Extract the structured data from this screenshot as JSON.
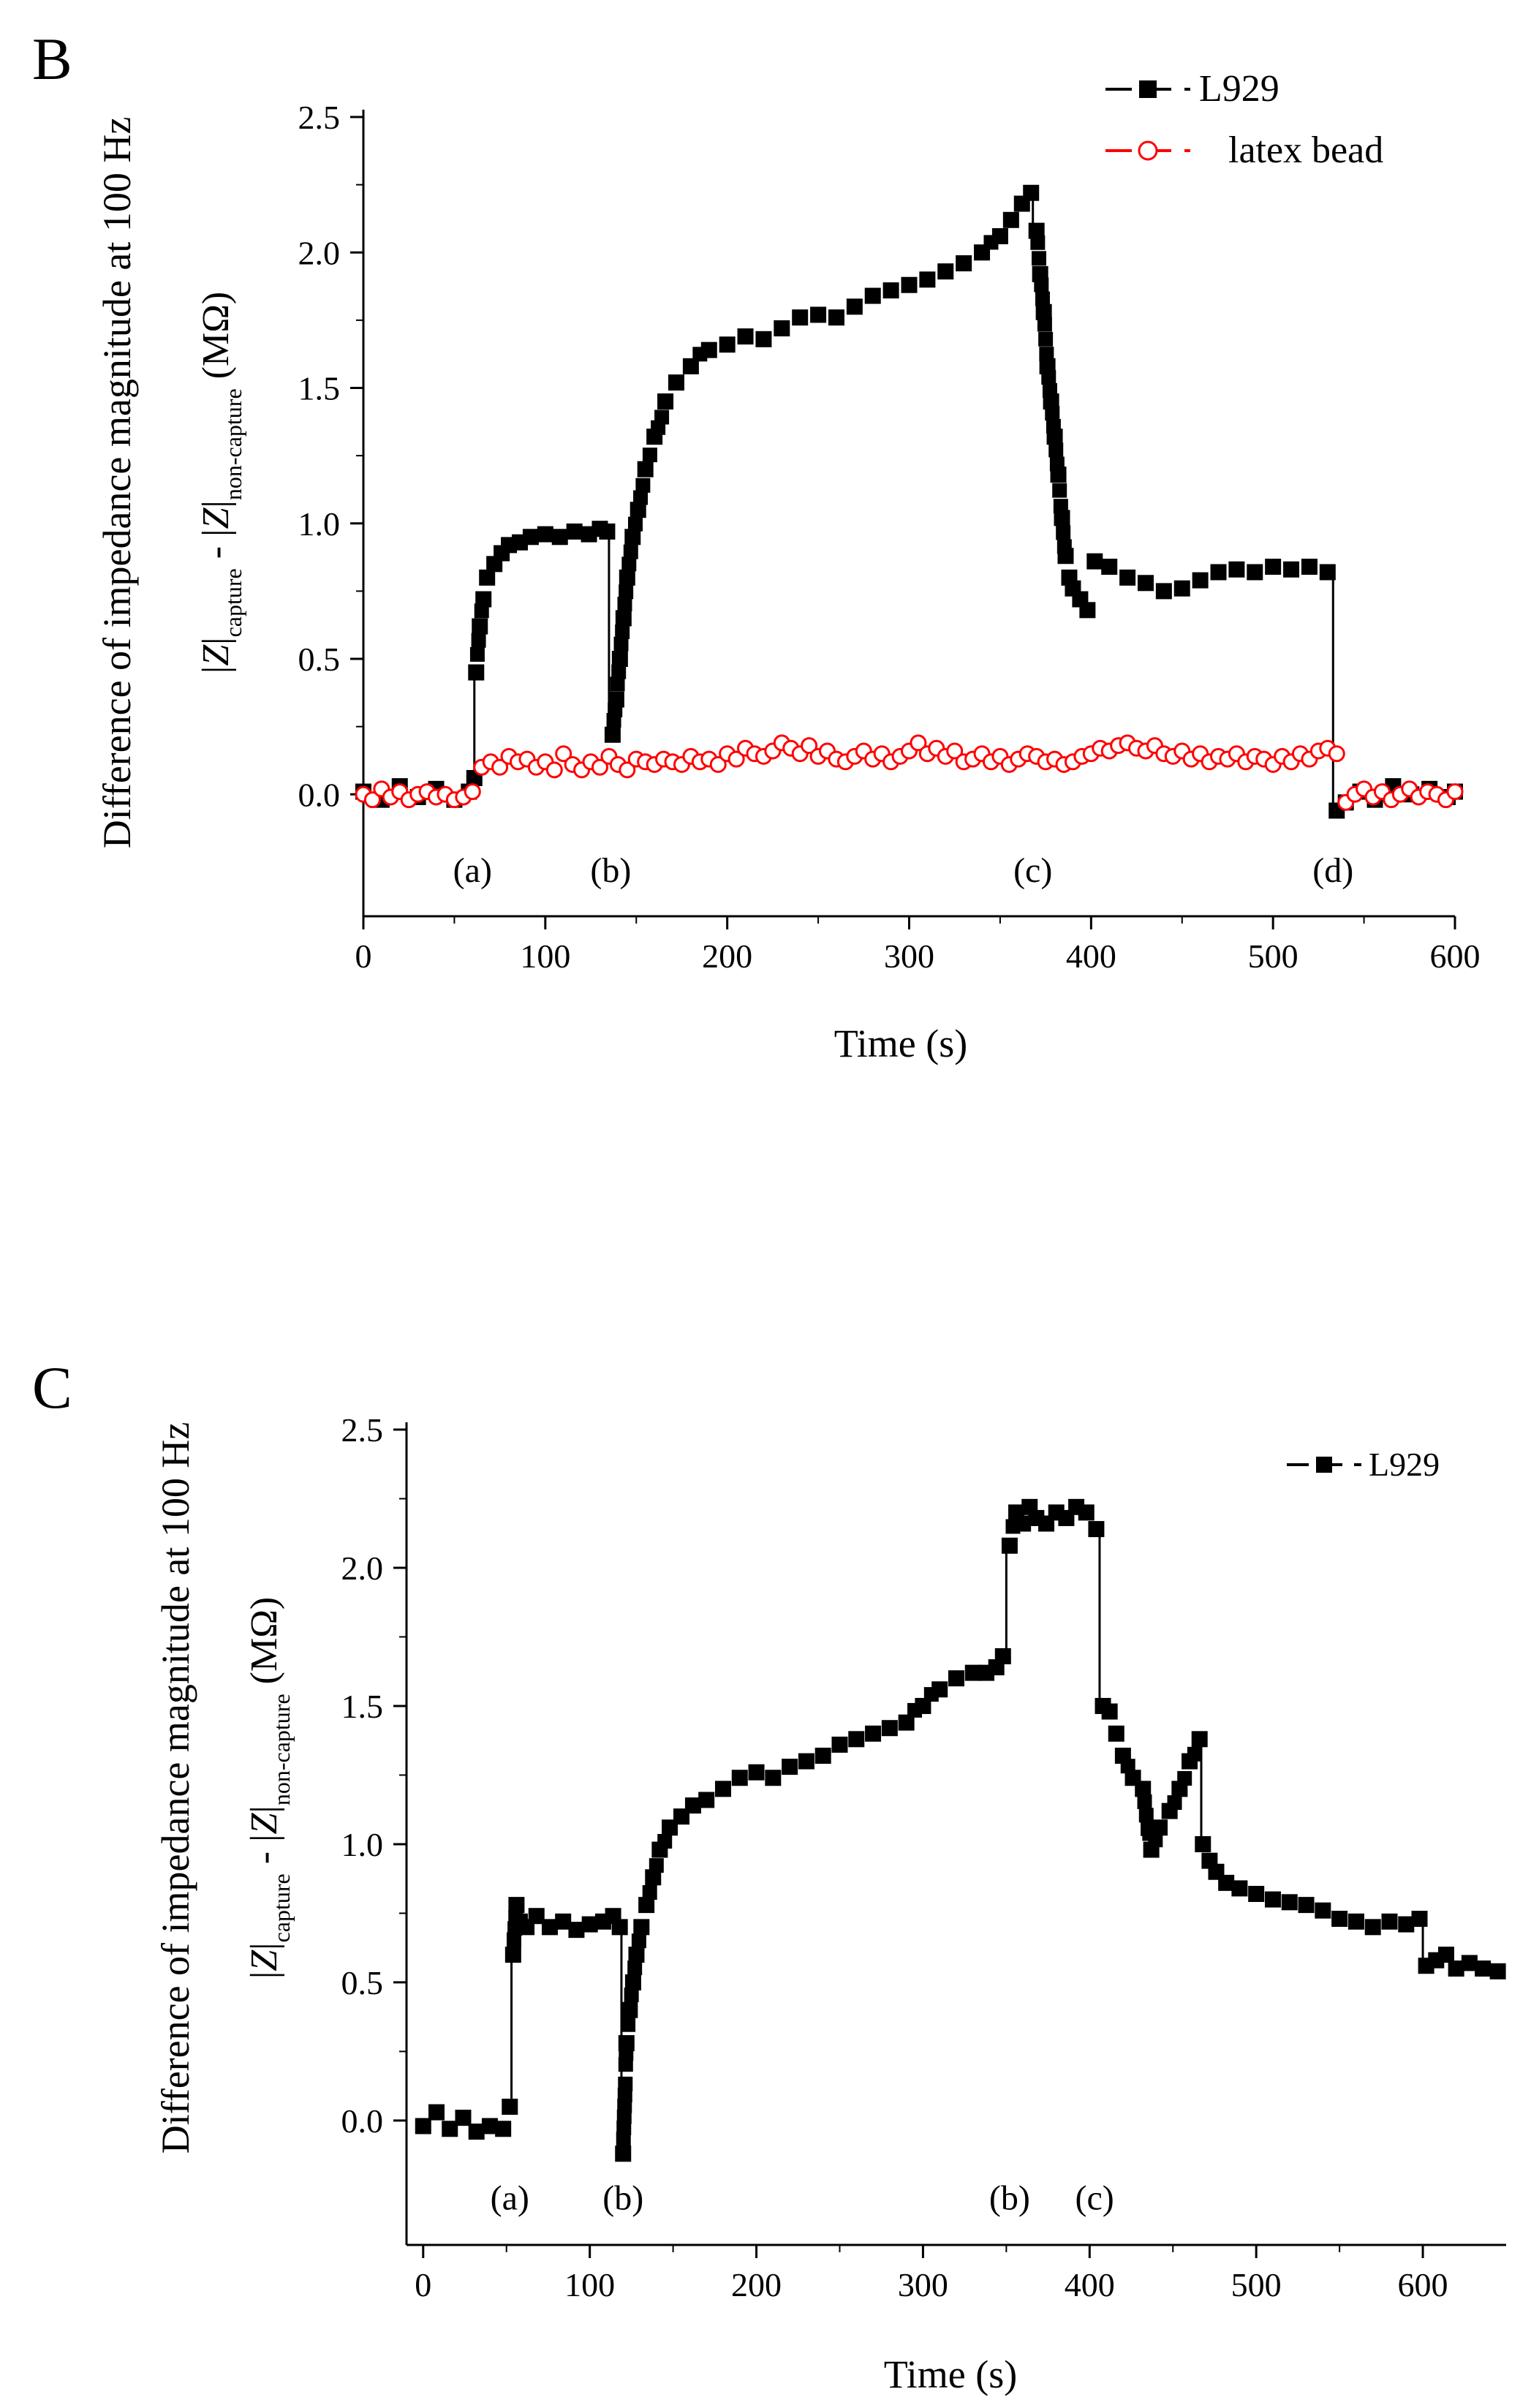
{
  "chart_data": [
    {
      "panel_label": "B",
      "type": "scatter",
      "xlabel": "Time (s)",
      "ylabel_line1": "Difference of impedance magnitude at 100 Hz",
      "ylabel_line2": {
        "a": "|",
        "b": "Z",
        "c": "|",
        "d": "capture",
        "e": " - |",
        "f": "Z",
        "g": "|",
        "h": "non-capture",
        "i": " (MΩ)"
      },
      "xlim": [
        0,
        600
      ],
      "ylim": [
        -0.45,
        2.5
      ],
      "xticks": [
        0,
        100,
        200,
        300,
        400,
        500,
        600
      ],
      "xtick_labels": [
        "0",
        "100",
        "200",
        "300",
        "400",
        "500",
        "600"
      ],
      "yticks": [
        0.0,
        0.5,
        1.0,
        1.5,
        2.0,
        2.5
      ],
      "ytick_labels": [
        "0.0",
        "0.5",
        "1.0",
        "1.5",
        "2.0",
        "2.5"
      ],
      "annotations": [
        {
          "text": "(a)",
          "x": 60,
          "y": -0.28
        },
        {
          "text": "(b)",
          "x": 136,
          "y": -0.28
        },
        {
          "text": "(c)",
          "x": 368,
          "y": -0.28
        },
        {
          "text": "(d)",
          "x": 533,
          "y": -0.28
        }
      ],
      "legend_position": "top-right",
      "series": [
        {
          "name": "L929",
          "color": "#000000",
          "marker": "square-filled",
          "segments": [
            {
              "x": [
                0,
                10,
                20,
                30,
                40,
                50,
                58,
                61
              ],
              "y": [
                0.01,
                -0.02,
                0.03,
                -0.01,
                0.02,
                -0.02,
                0.01,
                0.06
              ]
            },
            {
              "x": [
                62,
                64,
                66,
                68,
                72,
                76,
                80,
                86,
                92,
                100,
                108,
                116,
                124,
                130,
                134
              ],
              "y": [
                0.45,
                0.62,
                0.72,
                0.8,
                0.85,
                0.89,
                0.92,
                0.93,
                0.95,
                0.96,
                0.95,
                0.97,
                0.96,
                0.98,
                0.97
              ]
            },
            {
              "x": [
                137,
                139,
                141,
                143,
                145,
                148,
                151,
                155,
                160,
                166,
                172,
                180,
                190,
                200,
                210,
                220,
                230,
                240,
                250,
                260,
                270,
                280,
                290,
                300,
                310,
                320,
                330,
                340,
                350,
                356,
                362,
                367
              ],
              "y": [
                0.22,
                0.35,
                0.5,
                0.65,
                0.8,
                0.95,
                1.05,
                1.2,
                1.32,
                1.45,
                1.52,
                1.58,
                1.64,
                1.66,
                1.69,
                1.68,
                1.72,
                1.76,
                1.77,
                1.76,
                1.8,
                1.84,
                1.86,
                1.88,
                1.9,
                1.93,
                1.96,
                2.0,
                2.06,
                2.12,
                2.18,
                2.22
              ]
            },
            {
              "x": [
                370,
                372,
                374,
                376,
                378,
                380,
                382,
                384,
                386,
                388,
                390,
                394,
                398
              ],
              "y": [
                2.08,
                1.92,
                1.78,
                1.58,
                1.45,
                1.32,
                1.18,
                1.02,
                0.88,
                0.8,
                0.76,
                0.72,
                0.68
              ]
            },
            {
              "x": [
                402,
                410,
                420,
                430,
                440,
                450,
                460,
                470,
                480,
                490,
                500,
                510,
                520,
                530
              ],
              "y": [
                0.86,
                0.84,
                0.8,
                0.78,
                0.75,
                0.76,
                0.79,
                0.82,
                0.83,
                0.82,
                0.84,
                0.83,
                0.84,
                0.82
              ]
            },
            {
              "x": [
                535,
                540,
                548,
                556,
                566,
                576,
                586,
                596,
                600
              ],
              "y": [
                -0.06,
                -0.03,
                0.01,
                -0.02,
                0.03,
                0.0,
                0.02,
                -0.01,
                0.01
              ]
            }
          ],
          "drops": [
            {
              "x": 61,
              "y1": 0.06,
              "y2": 0.45
            },
            {
              "x": 135,
              "y1": 0.97,
              "y2": 0.22
            },
            {
              "x": 368,
              "y1": 2.22,
              "y2": 2.08
            },
            {
              "x": 533,
              "y1": 0.82,
              "y2": -0.06
            }
          ]
        },
        {
          "name": "latex bead",
          "color": "#ff0000",
          "marker": "circle-open",
          "x": [
            0,
            5,
            10,
            15,
            20,
            25,
            30,
            35,
            40,
            45,
            50,
            55,
            60,
            65,
            70,
            75,
            80,
            85,
            90,
            95,
            100,
            105,
            110,
            115,
            120,
            125,
            130,
            135,
            140,
            145,
            150,
            155,
            160,
            165,
            170,
            175,
            180,
            185,
            190,
            195,
            200,
            205,
            210,
            215,
            220,
            225,
            230,
            235,
            240,
            245,
            250,
            255,
            260,
            265,
            270,
            275,
            280,
            285,
            290,
            295,
            300,
            305,
            310,
            315,
            320,
            325,
            330,
            335,
            340,
            345,
            350,
            355,
            360,
            365,
            370,
            375,
            380,
            385,
            390,
            395,
            400,
            405,
            410,
            415,
            420,
            425,
            430,
            435,
            440,
            445,
            450,
            455,
            460,
            465,
            470,
            475,
            480,
            485,
            490,
            495,
            500,
            505,
            510,
            515,
            520,
            525,
            530,
            535,
            540,
            545,
            550,
            555,
            560,
            565,
            570,
            575,
            580,
            585,
            590,
            595,
            600
          ],
          "y": [
            0.0,
            -0.02,
            0.02,
            -0.01,
            0.01,
            -0.02,
            0.0,
            0.01,
            -0.01,
            0.0,
            -0.02,
            -0.01,
            0.01,
            0.1,
            0.12,
            0.1,
            0.14,
            0.12,
            0.13,
            0.1,
            0.12,
            0.09,
            0.15,
            0.11,
            0.09,
            0.12,
            0.1,
            0.14,
            0.11,
            0.09,
            0.13,
            0.12,
            0.11,
            0.13,
            0.12,
            0.11,
            0.14,
            0.12,
            0.13,
            0.11,
            0.15,
            0.13,
            0.17,
            0.15,
            0.14,
            0.16,
            0.19,
            0.17,
            0.15,
            0.18,
            0.14,
            0.16,
            0.13,
            0.12,
            0.14,
            0.16,
            0.13,
            0.15,
            0.12,
            0.14,
            0.16,
            0.19,
            0.15,
            0.17,
            0.14,
            0.16,
            0.12,
            0.13,
            0.15,
            0.12,
            0.14,
            0.11,
            0.13,
            0.15,
            0.14,
            0.12,
            0.13,
            0.11,
            0.12,
            0.14,
            0.15,
            0.17,
            0.16,
            0.18,
            0.19,
            0.17,
            0.16,
            0.18,
            0.15,
            0.14,
            0.16,
            0.13,
            0.15,
            0.12,
            0.14,
            0.13,
            0.15,
            0.12,
            0.14,
            0.13,
            0.11,
            0.14,
            0.12,
            0.15,
            0.13,
            0.16,
            0.17,
            0.15,
            -0.03,
            0.0,
            0.02,
            -0.01,
            0.01,
            -0.02,
            0.0,
            0.02,
            -0.01,
            0.01,
            0.0,
            -0.02,
            0.01
          ]
        }
      ]
    },
    {
      "panel_label": "C",
      "type": "scatter",
      "xlabel": "Time (s)",
      "ylabel_line1": "Difference of impedance magnitude at 100 Hz",
      "ylabel_line2": {
        "a": "|",
        "b": "Z",
        "c": "|",
        "d": "capture",
        "e": " - |",
        "f": "Z",
        "g": "|",
        "h": "non-capture",
        "i": " (MΩ)"
      },
      "xlim": [
        -10,
        650
      ],
      "ylim": [
        -0.45,
        2.5
      ],
      "xticks": [
        0,
        100,
        200,
        300,
        400,
        500,
        600
      ],
      "xtick_labels": [
        "0",
        "100",
        "200",
        "300",
        "400",
        "500",
        "600"
      ],
      "yticks": [
        0.0,
        0.5,
        1.0,
        1.5,
        2.0,
        2.5
      ],
      "ytick_labels": [
        "0.0",
        "0.5",
        "1.0",
        "1.5",
        "2.0",
        "2.5"
      ],
      "annotations": [
        {
          "text": "(a)",
          "x": 52,
          "y": -0.28
        },
        {
          "text": "(b)",
          "x": 120,
          "y": -0.28
        },
        {
          "text": "(b)",
          "x": 352,
          "y": -0.28
        },
        {
          "text": "(c)",
          "x": 403,
          "y": -0.28
        }
      ],
      "legend_position": "top-right",
      "series": [
        {
          "name": "L929",
          "color": "#000000",
          "marker": "square-filled",
          "segments": [
            {
              "x": [
                0,
                8,
                16,
                24,
                32,
                40,
                48,
                52
              ],
              "y": [
                -0.02,
                0.03,
                -0.03,
                0.01,
                -0.04,
                -0.02,
                -0.03,
                0.05
              ]
            },
            {
              "x": [
                54,
                56,
                58,
                62,
                68,
                76,
                84,
                92,
                100,
                108,
                114,
                118
              ],
              "y": [
                0.6,
                0.78,
                0.72,
                0.7,
                0.74,
                0.7,
                0.72,
                0.69,
                0.71,
                0.72,
                0.74,
                0.7
              ]
            },
            {
              "x": [
                120,
                122,
                124,
                126,
                128,
                131,
                134,
                138,
                142,
                148,
                155,
                162,
                170,
                180,
                190,
                200,
                210,
                220,
                230,
                240,
                250,
                260,
                270,
                280,
                290,
                300,
                310,
                320,
                330,
                338,
                344,
                348
              ],
              "y": [
                -0.12,
                0.28,
                0.4,
                0.5,
                0.6,
                0.7,
                0.78,
                0.88,
                0.98,
                1.06,
                1.1,
                1.14,
                1.16,
                1.2,
                1.24,
                1.26,
                1.24,
                1.28,
                1.3,
                1.32,
                1.36,
                1.38,
                1.4,
                1.42,
                1.44,
                1.5,
                1.56,
                1.6,
                1.62,
                1.62,
                1.64,
                1.68
              ]
            },
            {
              "x": [
                352,
                356,
                360,
                364,
                368,
                374,
                380,
                386,
                392,
                398,
                404
              ],
              "y": [
                2.08,
                2.2,
                2.16,
                2.22,
                2.18,
                2.16,
                2.2,
                2.18,
                2.22,
                2.2,
                2.14
              ]
            },
            {
              "x": [
                408,
                412,
                416,
                420,
                426,
                432,
                437,
                442,
                448,
                454,
                460,
                466
              ],
              "y": [
                1.5,
                1.48,
                1.4,
                1.32,
                1.24,
                1.2,
                0.98,
                1.06,
                1.12,
                1.2,
                1.3,
                1.38
              ]
            },
            {
              "x": [
                468,
                472,
                476,
                482,
                490,
                500,
                510,
                520,
                530,
                540,
                550,
                560,
                570,
                580,
                590,
                598
              ],
              "y": [
                1.0,
                0.94,
                0.9,
                0.86,
                0.84,
                0.82,
                0.8,
                0.79,
                0.78,
                0.76,
                0.73,
                0.72,
                0.7,
                0.72,
                0.71,
                0.73
              ]
            },
            {
              "x": [
                602,
                608,
                614,
                620,
                628,
                636,
                645
              ],
              "y": [
                0.56,
                0.58,
                0.6,
                0.55,
                0.57,
                0.55,
                0.54
              ]
            }
          ],
          "drops": [
            {
              "x": 53,
              "y1": 0.05,
              "y2": 0.6
            },
            {
              "x": 119,
              "y1": 0.7,
              "y2": -0.12
            },
            {
              "x": 350,
              "y1": 1.68,
              "y2": 2.08
            },
            {
              "x": 406,
              "y1": 2.14,
              "y2": 1.5
            },
            {
              "x": 467,
              "y1": 1.38,
              "y2": 1.0
            },
            {
              "x": 600,
              "y1": 0.73,
              "y2": 0.56
            }
          ]
        }
      ]
    }
  ]
}
